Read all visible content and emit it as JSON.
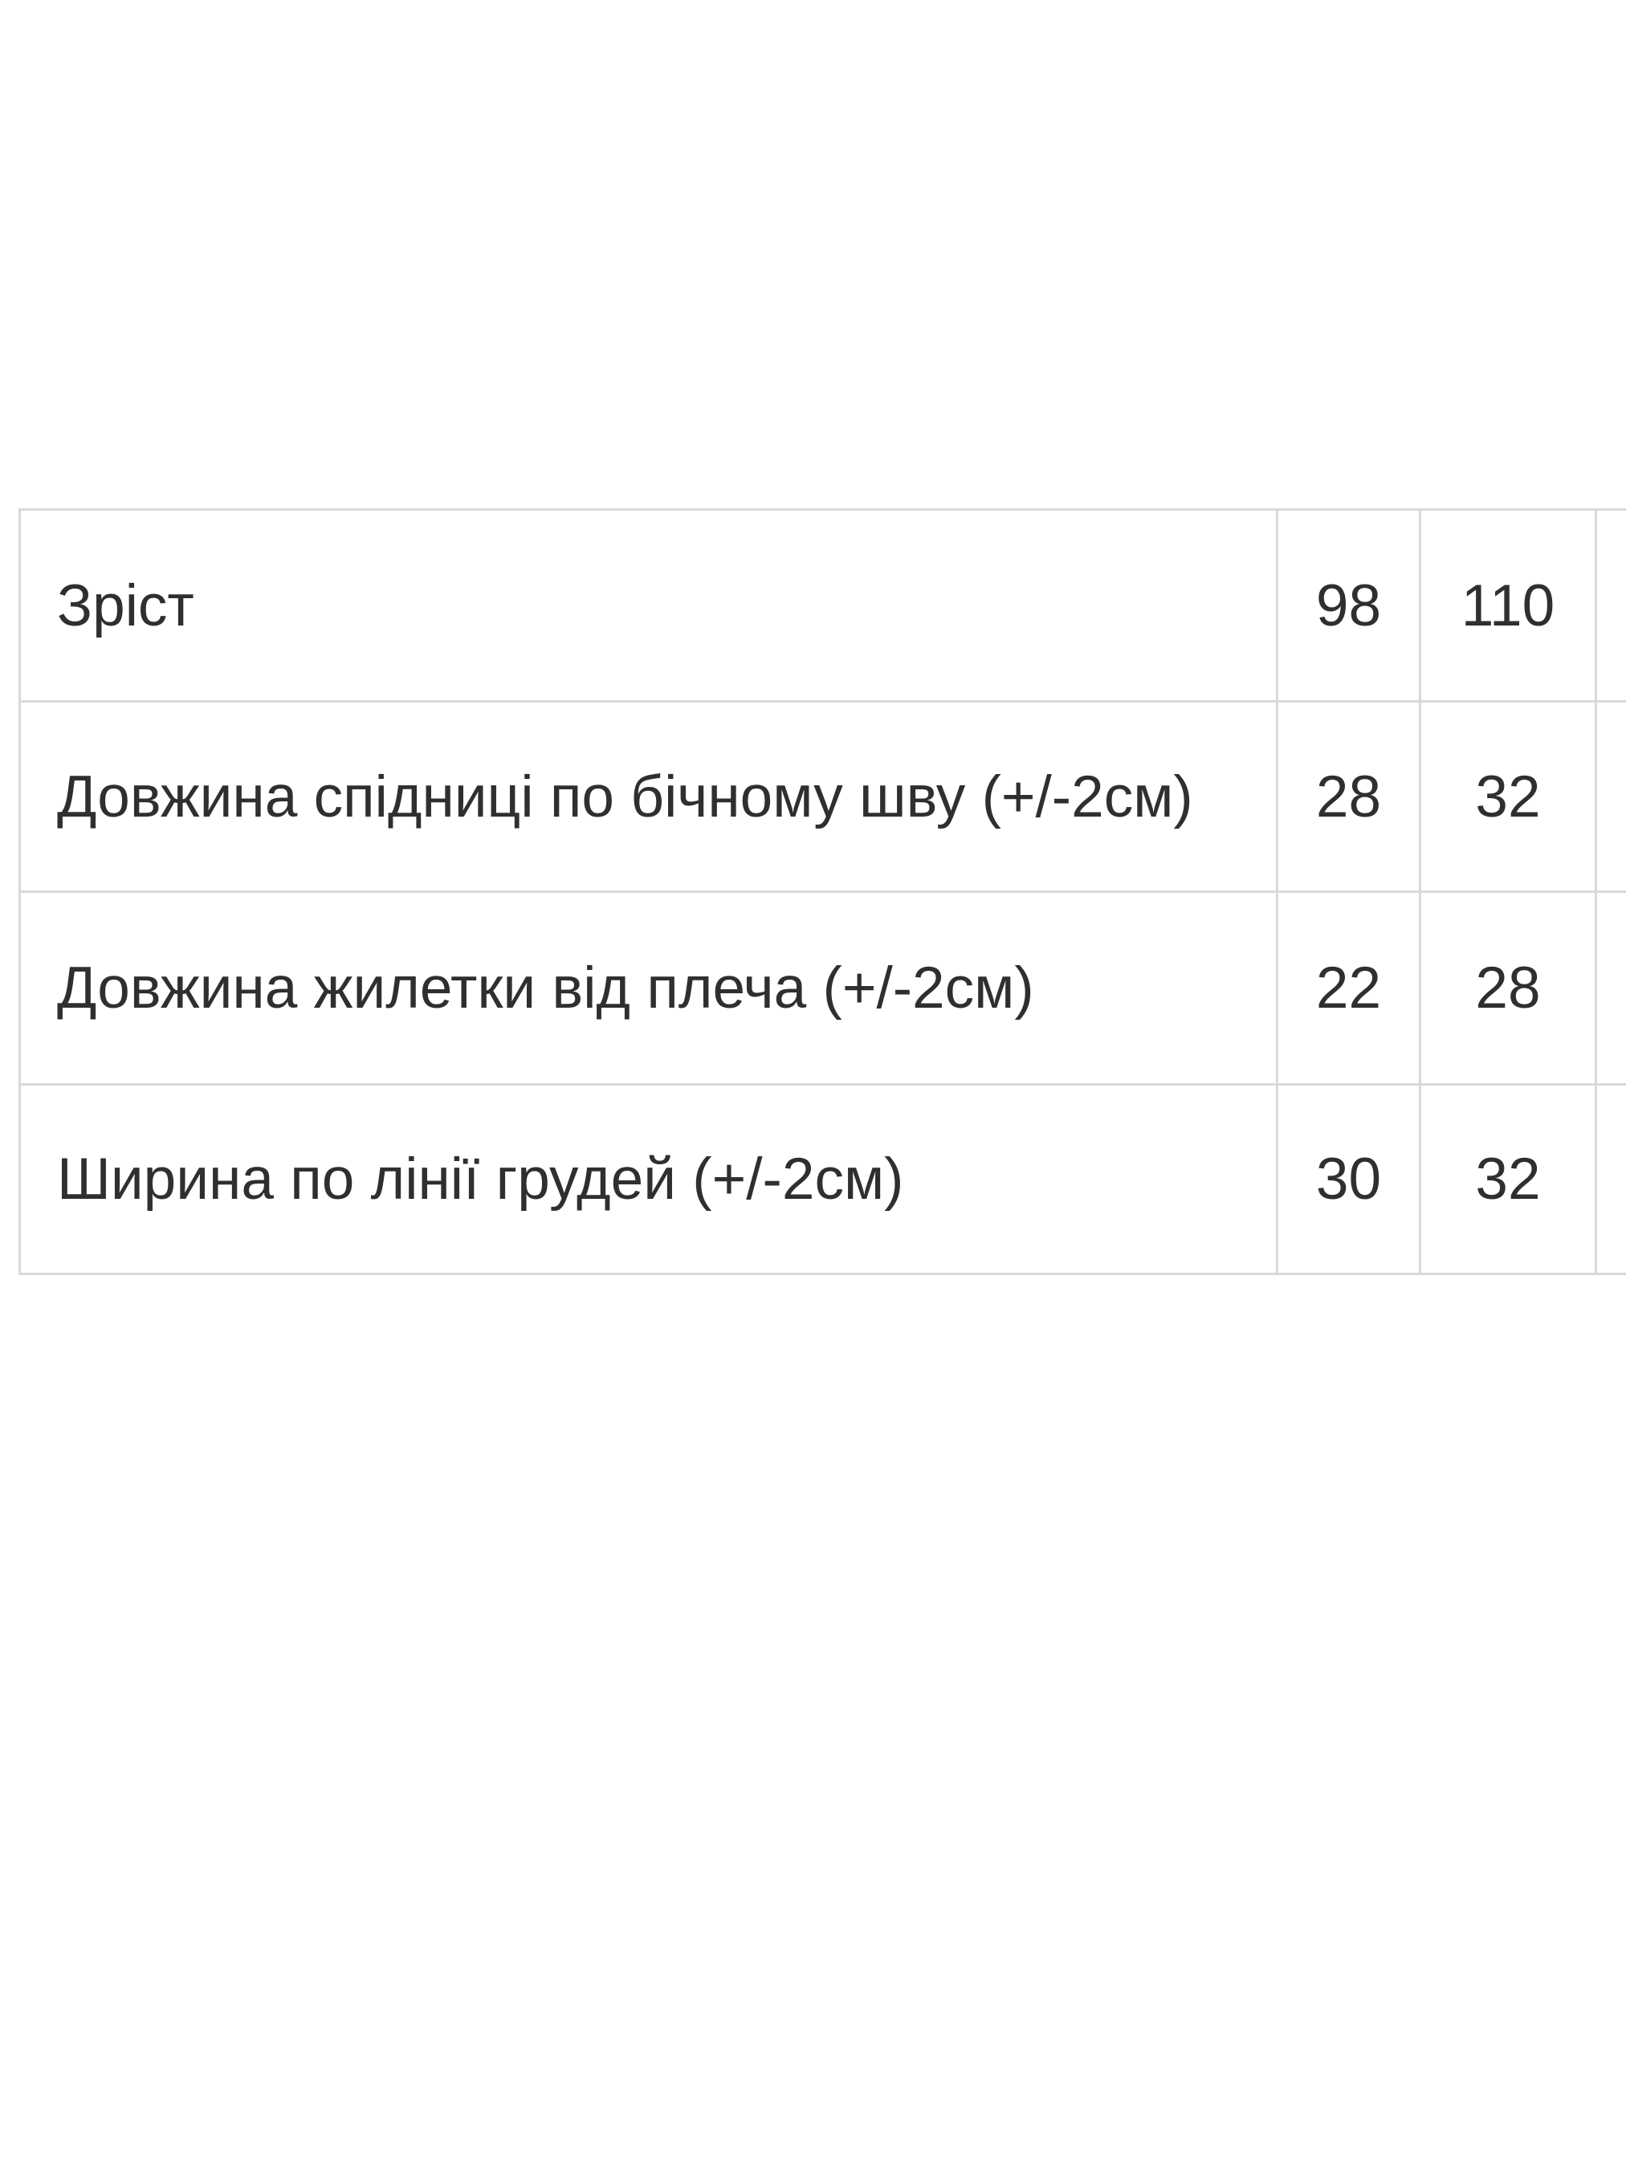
{
  "page": {
    "background_color": "#ffffff"
  },
  "chart_data": {
    "type": "table",
    "description_language": "uk",
    "rows": [
      {
        "label": "Зріст",
        "values": [
          "98",
          "110"
        ]
      },
      {
        "label": "Довжина спідниці по бічному шву (+/-2см)",
        "values": [
          "28",
          "32"
        ]
      },
      {
        "label": "Довжина жилетки від плеча (+/-2см)",
        "values": [
          "22",
          "28"
        ]
      },
      {
        "label": "Ширина по лінії грудей (+/-2см)",
        "values": [
          "30",
          "32"
        ]
      }
    ],
    "layout_hints": {
      "grid": true,
      "fourth_column_cut_off_at_right_edge": true,
      "label_column_align": "left",
      "value_columns_align": "center"
    }
  },
  "colors": {
    "table_border": "#d9d9d9",
    "text": "#2f2f2f",
    "background": "#ffffff"
  }
}
